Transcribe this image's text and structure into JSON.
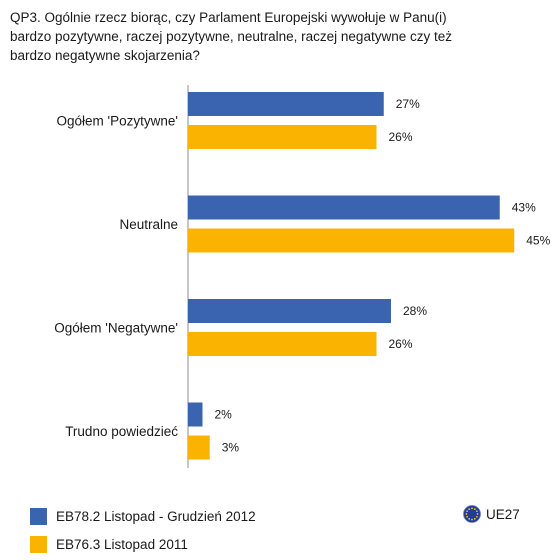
{
  "question_lines": [
    "QP3. Ogólnie rzecz biorąc, czy Parlament Europejski wywołuje w Panu(i)",
    "bardzo pozytywne, raczej pozytywne, neutralne, raczej negatywne czy też",
    "bardzo negatywne skojarzenia?"
  ],
  "chart_data": {
    "type": "bar",
    "orientation": "horizontal",
    "title": "QP3. Ogólnie rzecz biorąc, czy Parlament Europejski wywołuje w Panu(i) bardzo pozytywne, raczej pozytywne, neutralne, raczej negatywne czy też bardzo negatywne skojarzenia?",
    "categories": [
      "Ogółem 'Pozytywne'",
      "Neutralne",
      "Ogółem 'Negatywne'",
      "Trudno powiedzieć"
    ],
    "series": [
      {
        "name": "EB78.2 Listopad - Grudzień 2012",
        "color": "#3a64b0",
        "values": [
          27,
          43,
          28,
          2
        ],
        "labels": [
          "27%",
          "43%",
          "28%",
          "2%"
        ]
      },
      {
        "name": "EB76.3 Listopad 2011",
        "color": "#fab400",
        "values": [
          26,
          45,
          26,
          3
        ],
        "labels": [
          "26%",
          "45%",
          "26%",
          "3%"
        ]
      }
    ],
    "unit": "%",
    "grid": false,
    "legend_position": "bottom-left"
  },
  "legend": {
    "items": [
      {
        "label": "EB78.2 Listopad - Grudzień 2012",
        "color": "#3a64b0"
      },
      {
        "label": "EB76.3 Listopad 2011",
        "color": "#fab400"
      }
    ],
    "region_label": "UE27",
    "region_icon": "eu-flag-icon"
  },
  "colors": {
    "blue": "#3a64b0",
    "orange": "#fab400",
    "axis": "#8c8c8c",
    "eu_flag": "#1f3c96",
    "eu_star": "#ffd700"
  }
}
